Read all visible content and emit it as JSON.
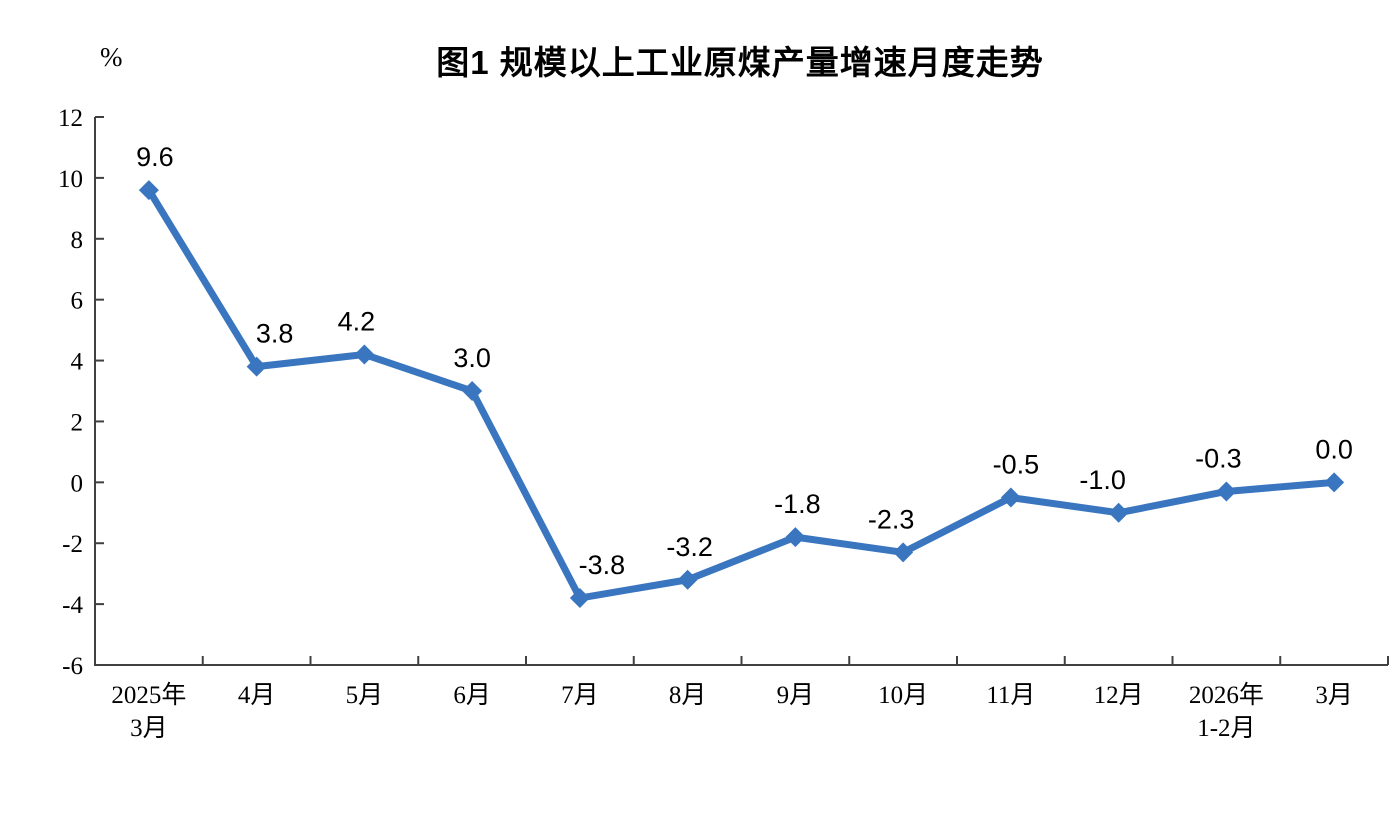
{
  "chart_data": {
    "type": "line",
    "title": "图1  规模以上工业原煤产量增速月度走势",
    "unit_label": "%",
    "categories": [
      [
        "2025年",
        "3月"
      ],
      [
        "4月"
      ],
      [
        "5月"
      ],
      [
        "6月"
      ],
      [
        "7月"
      ],
      [
        "8月"
      ],
      [
        "9月"
      ],
      [
        "10月"
      ],
      [
        "11月"
      ],
      [
        "12月"
      ],
      [
        "2026年",
        "1-2月"
      ],
      [
        "3月"
      ]
    ],
    "series": [
      {
        "name": "规模以上工业原煤产量增速",
        "values": [
          9.6,
          3.8,
          4.2,
          3.0,
          -3.8,
          -3.2,
          -1.8,
          -2.3,
          -0.5,
          -1.0,
          -0.3,
          0.0
        ],
        "data_labels": [
          "9.6",
          "3.8",
          "4.2",
          "3.0",
          "-3.8",
          "-3.2",
          "-1.8",
          "-2.3",
          "-0.5",
          "-1.0",
          "-0.3",
          "0.0"
        ]
      }
    ],
    "ylim": [
      -6,
      12
    ],
    "yticks": [
      12,
      10,
      8,
      6,
      4,
      2,
      0,
      -2,
      -4,
      -6
    ],
    "grid": false,
    "legend_position": "none",
    "marker": "diamond",
    "line_color": "#3A76C0",
    "axis_color": "#404040",
    "label_color": "#000000",
    "background_color": "#ffffff"
  }
}
